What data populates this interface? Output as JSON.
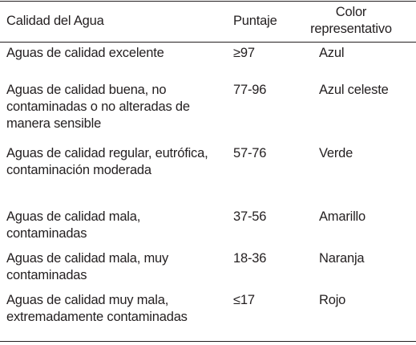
{
  "headers": {
    "quality": "Calidad del Agua",
    "score": "Puntaje",
    "color": "Color\nrepresentativo"
  },
  "rows": [
    {
      "quality": "Aguas de calidad excelente",
      "score": "≥97",
      "color": "Azul"
    },
    {
      "quality": "Aguas de calidad buena, no\ncontaminadas o no alteradas de\nmanera sensible",
      "score": "77-96",
      "color": "Azul celeste"
    },
    {
      "quality": "Aguas de calidad regular, eutrófica,\ncontaminación moderada",
      "score": "57-76",
      "color": "Verde"
    },
    {
      "quality": "Aguas de calidad mala,\ncontaminadas",
      "score": "37-56",
      "color": "Amarillo"
    },
    {
      "quality": "Aguas de calidad mala, muy\ncontaminadas",
      "score": "18-36",
      "color": "Naranja"
    },
    {
      "quality": "Aguas de calidad muy mala,\nextremadamente contaminadas",
      "score": "≤17",
      "color": "Rojo"
    }
  ]
}
